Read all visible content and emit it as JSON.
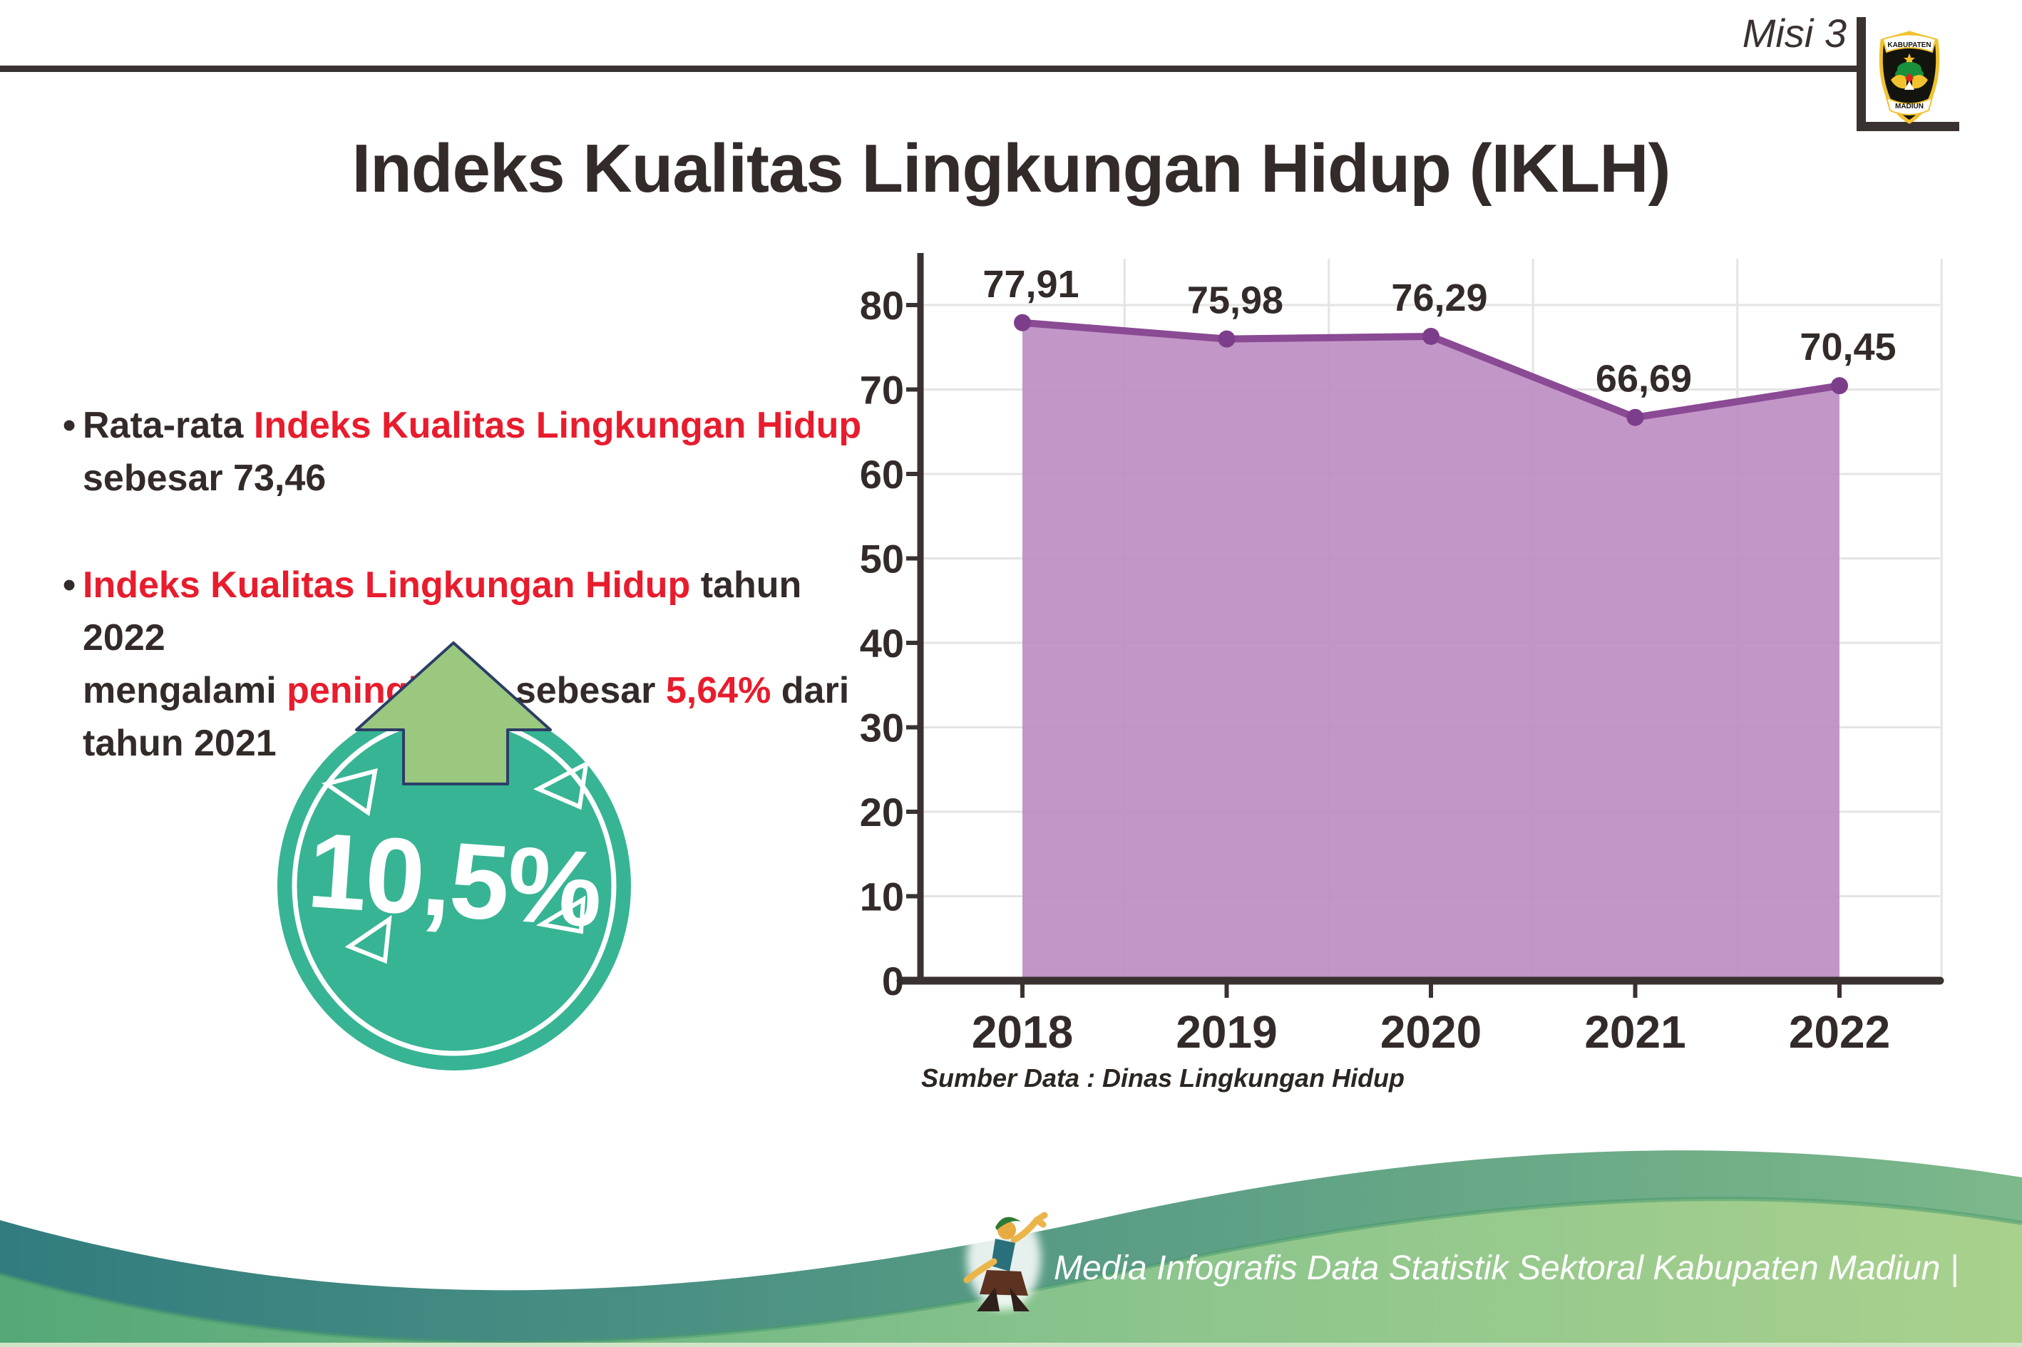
{
  "header": {
    "misi": "Misi 3",
    "title": "Indeks Kualitas Lingkungan Hidup (IKLH)",
    "logo": {
      "top_text": "KABUPATEN",
      "bottom_text": "MADIUN"
    }
  },
  "bullets": [
    {
      "marker": "•",
      "lines": [
        [
          {
            "t": "Rata-rata ",
            "c": "dark"
          },
          {
            "t": "Indeks Kualitas Lingkungan Hidup",
            "c": "red"
          }
        ],
        [
          {
            "t": "sebesar 73,46",
            "c": "dark"
          }
        ]
      ]
    },
    {
      "marker": "•",
      "lines": [
        [
          {
            "t": "Indeks Kualitas Lingkungan Hidup",
            "c": "red"
          },
          {
            "t": " tahun 2022",
            "c": "dark"
          }
        ],
        [
          {
            "t": "mengalami ",
            "c": "dark"
          },
          {
            "t": "peningkatan",
            "c": "red"
          },
          {
            "t": " sebesar ",
            "c": "dark"
          },
          {
            "t": "5,64%",
            "c": "red"
          },
          {
            "t": " dari",
            "c": "dark"
          }
        ],
        [
          {
            "t": "tahun 2021",
            "c": "dark"
          }
        ]
      ]
    }
  ],
  "badge": {
    "value": "10,5%"
  },
  "chart_data": {
    "type": "area",
    "title": "Indeks Kualitas Lingkungan Hidup (IKLH)",
    "categories": [
      "2018",
      "2019",
      "2020",
      "2021",
      "2022"
    ],
    "values": [
      77.91,
      75.98,
      76.29,
      66.69,
      70.45
    ],
    "value_labels": [
      "77,91",
      "75,98",
      "76,29",
      "66,69",
      "70,45"
    ],
    "ylim": [
      0,
      80
    ],
    "ytick_step": 10,
    "grid": true,
    "legend": false,
    "source": "Sumber Data : Dinas Lingkungan Hidup",
    "colors": {
      "fill": "#bd8ec2",
      "line": "#8a4a94",
      "dot": "#7c3e8a",
      "axis": "#3a3231",
      "grid": "#e6e3e3",
      "label": "#332b29"
    }
  },
  "footer": {
    "text": "Media Infografis Data Statistik Sektoral Kabupaten Madiun |"
  },
  "colors": {
    "text_dark": "#332b29",
    "accent_red": "#e81c2d",
    "badge_teal": "#37b493",
    "arrow_green": "#9bc87f",
    "arrow_outline": "#2c3e66",
    "footer_teal": "#317c7f",
    "footer_green_dark": "#55a878",
    "footer_green_light": "#a9d18d"
  }
}
